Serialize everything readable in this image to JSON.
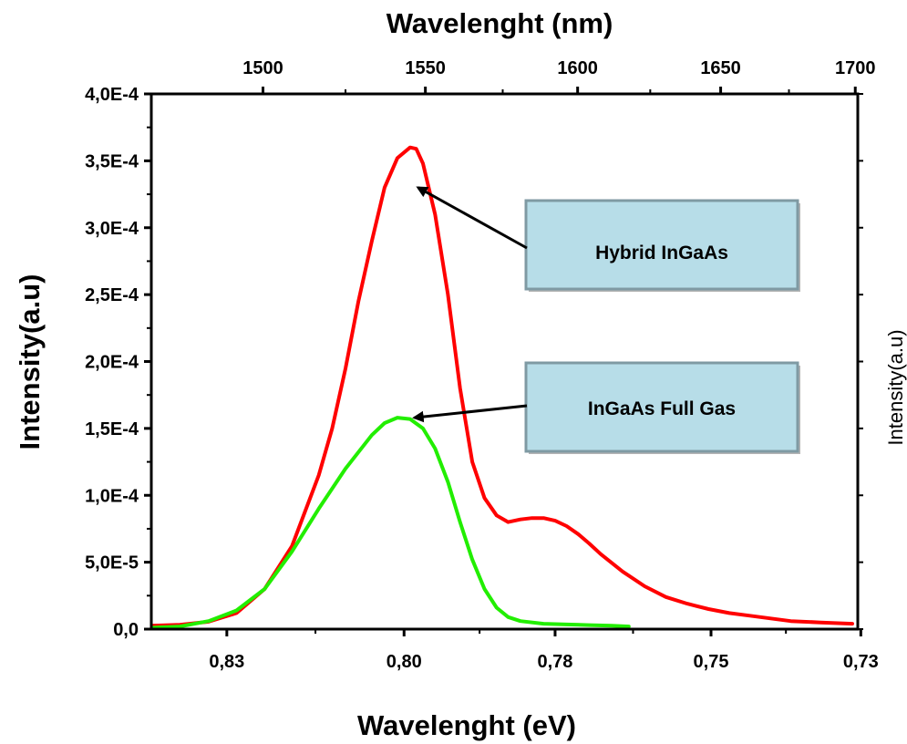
{
  "chart_data": {
    "type": "line",
    "xlabel": "Wavelenght (eV)",
    "x2label": "Wavelenght (nm)",
    "ylabel": "Intensity(a.u)",
    "y2label": "Intensity(a.u)",
    "xlim": [
      0.845,
      0.729
    ],
    "ylim": [
      0,
      0.0004
    ],
    "x_ticks": [
      {
        "label": "0,83",
        "value": 0.8326
      },
      {
        "label": "0,80",
        "value": 0.8035
      },
      {
        "label": "0,78",
        "value": 0.7787
      },
      {
        "label": "0,75",
        "value": 0.7531
      },
      {
        "label": "0,73",
        "value": 0.7285
      }
    ],
    "x2_ticks": [
      {
        "label": "1500",
        "value": 1500
      },
      {
        "label": "1550",
        "value": 1550
      },
      {
        "label": "1600",
        "value": 1600
      },
      {
        "label": "1650",
        "value": 1650
      },
      {
        "label": "1700",
        "value": 1700
      }
    ],
    "y_ticks": [
      {
        "label": "0,0",
        "value": 0
      },
      {
        "label": "5,0E-5",
        "value": 5e-05
      },
      {
        "label": "1,0E-4",
        "value": 0.0001
      },
      {
        "label": "1,5E-4",
        "value": 0.00015
      },
      {
        "label": "2,0E-4",
        "value": 0.0002
      },
      {
        "label": "2,5E-4",
        "value": 0.00025
      },
      {
        "label": "3,0E-4",
        "value": 0.0003
      },
      {
        "label": "3,5E-4",
        "value": 0.00035
      },
      {
        "label": "4,0E-4",
        "value": 0.0004
      }
    ],
    "series": [
      {
        "color": "#ff0000",
        "points": [
          [
            0.8451,
            2.5e-06
          ],
          [
            0.8403,
            3.2e-06
          ],
          [
            0.8356,
            5.5e-06
          ],
          [
            0.831,
            1.2e-05
          ],
          [
            0.8264,
            3e-05
          ],
          [
            0.8219,
            6.2e-05
          ],
          [
            0.8175,
            0.000115
          ],
          [
            0.8153,
            0.00015
          ],
          [
            0.8131,
            0.000195
          ],
          [
            0.811,
            0.000245
          ],
          [
            0.8088,
            0.00029
          ],
          [
            0.8067,
            0.00033
          ],
          [
            0.8046,
            0.000352
          ],
          [
            0.8025,
            0.00036
          ],
          [
            0.8015,
            0.000359
          ],
          [
            0.8004,
            0.000348
          ],
          [
            0.7984,
            0.00031
          ],
          [
            0.7963,
            0.00025
          ],
          [
            0.7943,
            0.00018
          ],
          [
            0.7923,
            0.000125
          ],
          [
            0.7903,
            9.8e-05
          ],
          [
            0.7883,
            8.5e-05
          ],
          [
            0.7864,
            8e-05
          ],
          [
            0.7844,
            8.2e-05
          ],
          [
            0.7825,
            8.3e-05
          ],
          [
            0.7806,
            8.3e-05
          ],
          [
            0.7787,
            8.1e-05
          ],
          [
            0.7768,
            7.7e-05
          ],
          [
            0.7749,
            7.1e-05
          ],
          [
            0.7731,
            6.4e-05
          ],
          [
            0.7712,
            5.6e-05
          ],
          [
            0.7676,
            4.3e-05
          ],
          [
            0.764,
            3.2e-05
          ],
          [
            0.7605,
            2.4e-05
          ],
          [
            0.757,
            1.9e-05
          ],
          [
            0.7535,
            1.5e-05
          ],
          [
            0.7501,
            1.2e-05
          ],
          [
            0.7467,
            1e-05
          ],
          [
            0.7433,
            8e-06
          ],
          [
            0.74,
            6e-06
          ],
          [
            0.7351,
            5e-06
          ],
          [
            0.7299,
            4e-06
          ]
        ]
      },
      {
        "color": "#22ee00",
        "points": [
          [
            0.8451,
            1e-06
          ],
          [
            0.8403,
            2e-06
          ],
          [
            0.8356,
            6e-06
          ],
          [
            0.831,
            1.4e-05
          ],
          [
            0.8264,
            3e-05
          ],
          [
            0.8219,
            5.8e-05
          ],
          [
            0.8175,
            9e-05
          ],
          [
            0.8131,
            0.00012
          ],
          [
            0.8088,
            0.000145
          ],
          [
            0.8067,
            0.000154
          ],
          [
            0.8046,
            0.000158
          ],
          [
            0.8025,
            0.000157
          ],
          [
            0.8004,
            0.00015
          ],
          [
            0.7984,
            0.000135
          ],
          [
            0.7963,
            0.00011
          ],
          [
            0.7943,
            8e-05
          ],
          [
            0.7923,
            5.2e-05
          ],
          [
            0.7903,
            3e-05
          ],
          [
            0.7883,
            1.6e-05
          ],
          [
            0.7864,
            9e-06
          ],
          [
            0.7844,
            6e-06
          ],
          [
            0.7806,
            4e-06
          ],
          [
            0.7768,
            3.5e-06
          ],
          [
            0.7731,
            3e-06
          ],
          [
            0.7694,
            2.5e-06
          ],
          [
            0.7666,
            2e-06
          ]
        ]
      }
    ],
    "annotations": [
      {
        "text": "Hybrid InGaAs",
        "arrow_to": [
          0.8012,
          0.00033
        ]
      },
      {
        "text": "InGaAs Full Gas",
        "arrow_to": [
          0.8018,
          0.000158
        ]
      }
    ]
  }
}
